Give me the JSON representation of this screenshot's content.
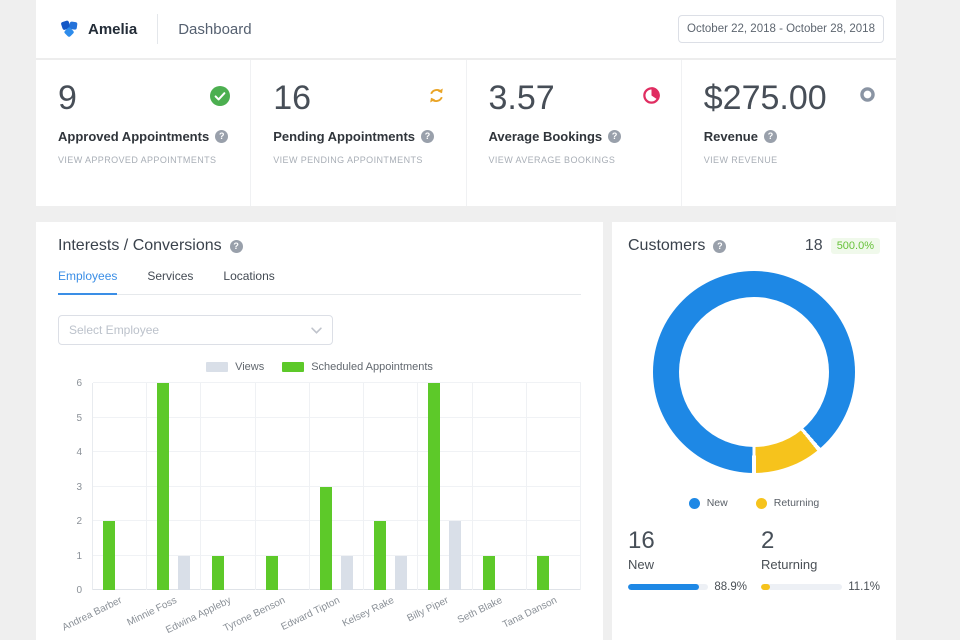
{
  "header": {
    "brand": "Amelia",
    "page_title": "Dashboard",
    "date_range": "October 22, 2018 - October 28, 2018"
  },
  "stats": [
    {
      "value": "9",
      "label": "Approved Appointments",
      "link": "VIEW APPROVED APPOINTMENTS",
      "icon": "check-circle-icon",
      "icon_color": "#4CAF50"
    },
    {
      "value": "16",
      "label": "Pending Appointments",
      "link": "VIEW PENDING APPOINTMENTS",
      "icon": "refresh-icon",
      "icon_color": "#E9A426"
    },
    {
      "value": "3.57",
      "label": "Average Bookings",
      "link": "VIEW AVERAGE BOOKINGS",
      "icon": "pie-icon",
      "icon_color": "#E02D61"
    },
    {
      "value": "$275.00",
      "label": "Revenue",
      "link": "VIEW REVENUE",
      "icon": "donut-icon",
      "icon_color": "#8A94A3"
    }
  ],
  "interests": {
    "title": "Interests / Conversions",
    "tabs": [
      {
        "label": "Employees",
        "active": true
      },
      {
        "label": "Services",
        "active": false
      },
      {
        "label": "Locations",
        "active": false
      }
    ],
    "select_placeholder": "Select Employee",
    "chart_data": {
      "type": "bar",
      "categories": [
        "Andrea Barber",
        "Minnie Foss",
        "Edwina Appleby",
        "Tyrone Benson",
        "Edward Tipton",
        "Kelsey Rake",
        "Billy Piper",
        "Seth Blake",
        "Tana Danson"
      ],
      "series": [
        {
          "name": "Views",
          "color": "#D9DFE8",
          "values": [
            0,
            1,
            0,
            0,
            1,
            1,
            2,
            0,
            0
          ]
        },
        {
          "name": "Scheduled Appointments",
          "color": "#5DC929",
          "values": [
            2,
            6,
            1,
            1,
            3,
            2,
            6,
            1,
            1
          ]
        }
      ],
      "group_order": [
        "Scheduled Appointments",
        "Views"
      ],
      "title": "",
      "xlabel": "",
      "ylabel": "",
      "ylim": [
        0,
        6
      ],
      "yticks": [
        0,
        1,
        2,
        3,
        4,
        5,
        6
      ],
      "grid": true,
      "legend_position": "top"
    }
  },
  "customers": {
    "title": "Customers",
    "total": "18",
    "badge": "500.0%",
    "chart_data": {
      "type": "pie",
      "donut": true,
      "labels": [
        "New",
        "Returning"
      ],
      "values": [
        16,
        2
      ],
      "colors": [
        "#1E88E5",
        "#F6C31C"
      ],
      "start_angle": "bottom",
      "legend_position": "bottom"
    },
    "metrics": [
      {
        "value": "16",
        "label": "New",
        "percent": "88.9%",
        "pct": 88.9,
        "color": "#1E88E5"
      },
      {
        "value": "2",
        "label": "Returning",
        "percent": "11.1%",
        "pct": 11.1,
        "color": "#F6C31C"
      }
    ]
  }
}
